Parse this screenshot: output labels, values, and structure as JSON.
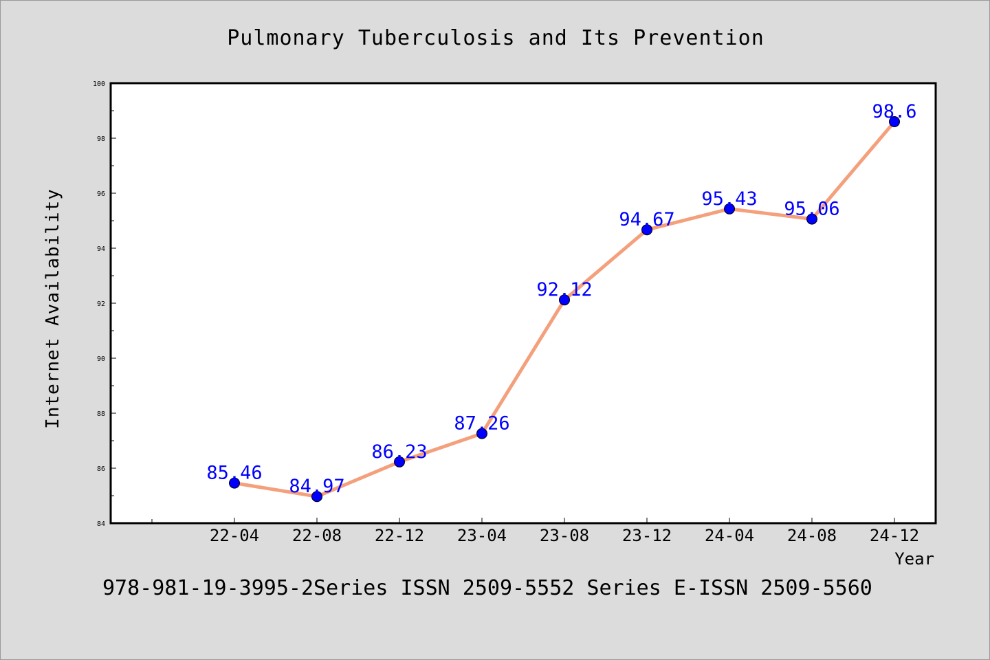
{
  "chart_data": {
    "type": "line",
    "title": "Pulmonary Tuberculosis and Its Prevention",
    "xlabel": "Year",
    "ylabel": "Internet Availability",
    "categories": [
      "22-04",
      "22-08",
      "22-12",
      "23-04",
      "23-08",
      "23-12",
      "24-04",
      "24-08",
      "24-12"
    ],
    "series": [
      {
        "values": [
          85.46,
          84.97,
          86.23,
          87.26,
          92.12,
          94.67,
          95.43,
          95.06,
          98.6
        ],
        "labels": [
          "85.46",
          "84.97",
          "86.23",
          "87.26",
          "92.12",
          "94.67",
          "95.43",
          "95.06",
          "98.6"
        ],
        "line_color": "#f4a07c",
        "marker_color": "#0000ff"
      }
    ],
    "ylim": [
      84,
      100
    ],
    "yticks": [
      "84",
      "86",
      "88",
      "90",
      "92",
      "94",
      "96",
      "98",
      "100"
    ],
    "grid": false,
    "legend": "none"
  },
  "footer": {
    "text": "978-981-19-3995-2Series ISSN 2509-5552 Series E-ISSN 2509-5560"
  },
  "colors": {
    "background": "#dcdcdc",
    "plot_background": "#ffffff",
    "line": "#f4a07c",
    "marker": "#0000ff",
    "data_label": "#0000ff"
  }
}
